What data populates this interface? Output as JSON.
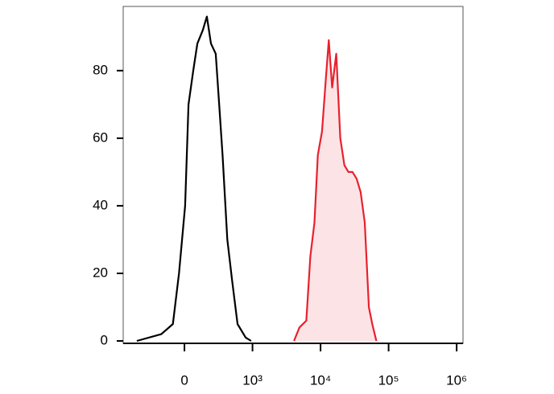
{
  "chart_data": {
    "type": "histogram-overlay",
    "xscale": "biexponential",
    "xlim": [
      -900,
      1240000
    ],
    "xticks": [
      0,
      {
        "value": 1000,
        "label": "10³"
      },
      {
        "value": 10000,
        "label": "10⁴"
      },
      {
        "value": 100000,
        "label": "10⁵"
      },
      {
        "value": 1000000,
        "label": "10⁶"
      }
    ],
    "ylim": [
      0,
      99
    ],
    "yticks": [
      0,
      20,
      40,
      60,
      80
    ],
    "series": [
      {
        "color": "#000000",
        "fill": false,
        "x": [
          -700,
          -340,
          -170,
          -80,
          10,
          60,
          130,
          190,
          270,
          330,
          390,
          460,
          510,
          560,
          630,
          700,
          780,
          900,
          980
        ],
        "values": [
          0,
          2,
          5,
          20,
          40,
          70,
          80,
          88,
          92,
          96,
          88,
          85,
          70,
          55,
          30,
          18,
          5,
          1,
          0
        ]
      },
      {
        "color": "#e8212f",
        "fill": true,
        "x": [
          4070,
          4900,
          6170,
          7080,
          8130,
          9120,
          10500,
          12000,
          13200,
          14800,
          17000,
          19500,
          22400,
          25700,
          29500,
          33900,
          38900,
          44700,
          51300,
          57500,
          66100
        ],
        "values": [
          0,
          4,
          6,
          25,
          35,
          55,
          62,
          78,
          89,
          75,
          85,
          60,
          52,
          50,
          50,
          48,
          44,
          35,
          10,
          5,
          0
        ]
      }
    ]
  }
}
